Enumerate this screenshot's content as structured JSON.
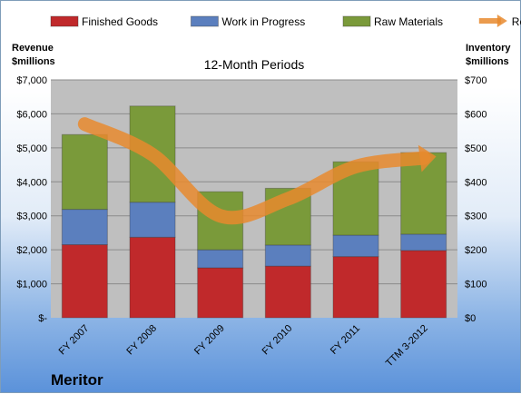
{
  "chart_data": {
    "type": "bar",
    "title": "12-Month Periods",
    "company": "Meritor",
    "ylabel_left": [
      "Revenue",
      "$millions"
    ],
    "ylabel_right": [
      "Inventory",
      "$millions"
    ],
    "categories": [
      "FY 2007",
      "FY 2008",
      "FY 2009",
      "FY 2010",
      "FY 2011",
      "TTM 3-2012"
    ],
    "stacked": true,
    "series": [
      {
        "name": "Finished Goods",
        "color": "#c0292b",
        "values": [
          215,
          237,
          147,
          152,
          180,
          198
        ]
      },
      {
        "name": "Work in Progress",
        "color": "#5b7fbe",
        "values": [
          104,
          103,
          53,
          62,
          63,
          48
        ]
      },
      {
        "name": "Raw Materials",
        "color": "#7a9a3a",
        "values": [
          220,
          283,
          171,
          167,
          216,
          240
        ]
      }
    ],
    "line_series": {
      "name": "Revenue",
      "color": "#e8892e",
      "values": [
        5700,
        4800,
        3000,
        3500,
        4450,
        4700
      ]
    },
    "left_axis": {
      "min": 0,
      "max": 7000,
      "ticks": [
        "$-",
        "$1,000",
        "$2,000",
        "$3,000",
        "$4,000",
        "$5,000",
        "$6,000",
        "$7,000"
      ]
    },
    "right_axis": {
      "min": 0,
      "max": 700,
      "ticks": [
        "$0",
        "$100",
        "$200",
        "$300",
        "$400",
        "$500",
        "$600",
        "$700"
      ]
    },
    "grid": true,
    "legend_position": "top"
  }
}
